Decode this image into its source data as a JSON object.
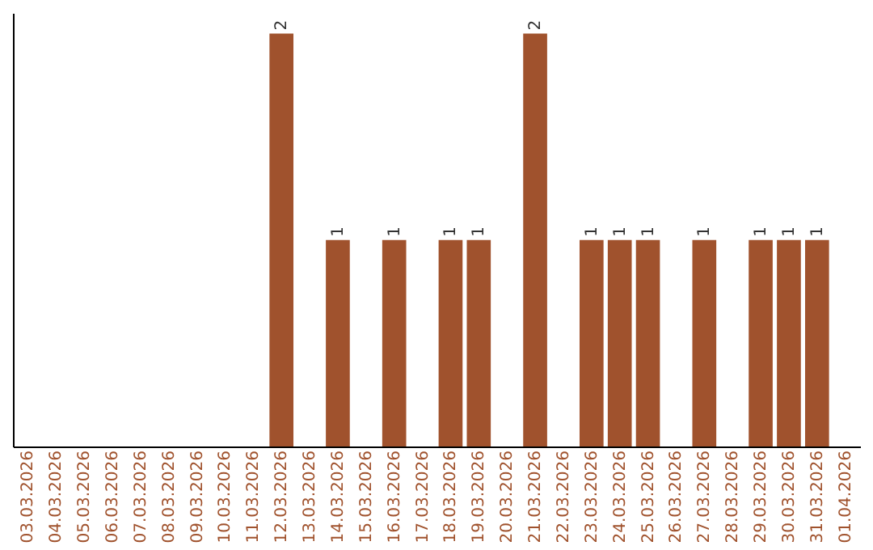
{
  "chart_data": {
    "type": "bar",
    "categories": [
      "03.03.2026",
      "04.03.2026",
      "05.03.2026",
      "06.03.2026",
      "07.03.2026",
      "08.03.2026",
      "09.03.2026",
      "10.03.2026",
      "11.03.2026",
      "12.03.2026",
      "13.03.2026",
      "14.03.2026",
      "15.03.2026",
      "16.03.2026",
      "17.03.2026",
      "18.03.2026",
      "19.03.2026",
      "20.03.2026",
      "21.03.2026",
      "22.03.2026",
      "23.03.2026",
      "24.03.2026",
      "25.03.2026",
      "26.03.2026",
      "27.03.2026",
      "28.03.2026",
      "29.03.2026",
      "30.03.2026",
      "31.03.2026",
      "01.04.2026"
    ],
    "values": [
      0,
      0,
      0,
      0,
      0,
      0,
      0,
      0,
      0,
      2,
      0,
      1,
      0,
      1,
      0,
      1,
      1,
      0,
      2,
      0,
      1,
      1,
      1,
      0,
      1,
      0,
      1,
      1,
      1,
      0
    ],
    "value_labels": [
      null,
      null,
      null,
      null,
      null,
      null,
      null,
      null,
      null,
      "2",
      null,
      "1",
      null,
      "1",
      null,
      "1",
      "1",
      null,
      "2",
      null,
      "1",
      "1",
      "1",
      null,
      "1",
      null,
      "1",
      "1",
      "1",
      null
    ],
    "color": "#a0522d",
    "tick_labels": "x"
  }
}
